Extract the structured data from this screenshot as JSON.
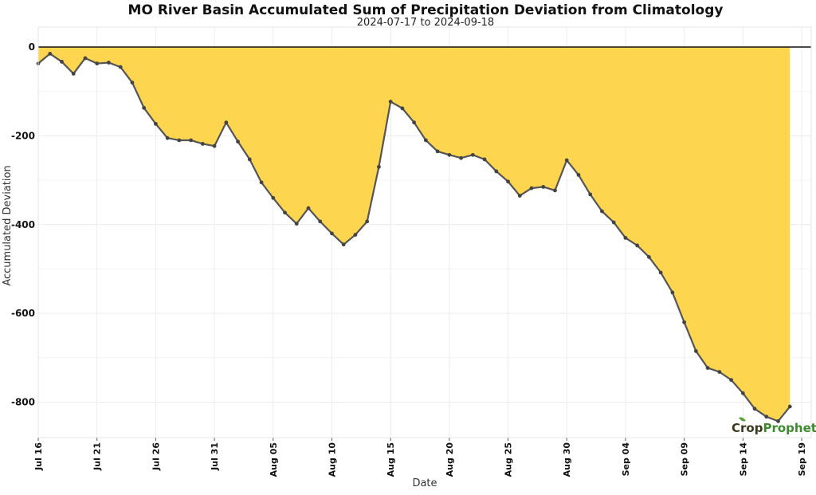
{
  "chart_data": {
    "type": "area",
    "title": "MO River Basin Accumulated Sum of Precipitation Deviation from Climatology",
    "subtitle": "2024-07-17 to 2024-09-18",
    "xlabel": "Date",
    "ylabel": "Accumulated Deviation",
    "ylim": [
      -880,
      45
    ],
    "y_ticks": [
      0,
      -200,
      -400,
      -600,
      -800
    ],
    "x_ticks": [
      "Jul 16",
      "Jul 21",
      "Jul 26",
      "Jul 31",
      "Aug 05",
      "Aug 10",
      "Aug 15",
      "Aug 20",
      "Aug 25",
      "Aug 30",
      "Sep 04",
      "Sep 09",
      "Sep 14",
      "Sep 19"
    ],
    "x_start_label": "Jul 16",
    "grid": true,
    "fill_color": "#fdd54f",
    "line_color": "#555555",
    "series": [
      {
        "x": [
          "2024-07-16",
          "2024-07-17",
          "2024-07-18",
          "2024-07-19",
          "2024-07-20",
          "2024-07-21",
          "2024-07-22",
          "2024-07-23",
          "2024-07-24",
          "2024-07-25",
          "2024-07-26",
          "2024-07-27",
          "2024-07-28",
          "2024-07-29",
          "2024-07-30",
          "2024-07-31",
          "2024-08-01",
          "2024-08-02",
          "2024-08-03",
          "2024-08-04",
          "2024-08-05",
          "2024-08-06",
          "2024-08-07",
          "2024-08-08",
          "2024-08-09",
          "2024-08-10",
          "2024-08-11",
          "2024-08-12",
          "2024-08-13",
          "2024-08-14",
          "2024-08-15",
          "2024-08-16",
          "2024-08-17",
          "2024-08-18",
          "2024-08-19",
          "2024-08-20",
          "2024-08-21",
          "2024-08-22",
          "2024-08-23",
          "2024-08-24",
          "2024-08-25",
          "2024-08-26",
          "2024-08-27",
          "2024-08-28",
          "2024-08-29",
          "2024-08-30",
          "2024-08-31",
          "2024-09-01",
          "2024-09-02",
          "2024-09-03",
          "2024-09-04",
          "2024-09-05",
          "2024-09-06",
          "2024-09-07",
          "2024-09-08",
          "2024-09-09",
          "2024-09-10",
          "2024-09-11",
          "2024-09-12",
          "2024-09-13",
          "2024-09-14",
          "2024-09-15",
          "2024-09-16",
          "2024-09-17",
          "2024-09-18"
        ],
        "y": [
          -37,
          -15,
          -33,
          -60,
          -25,
          -37,
          -35,
          -45,
          -80,
          -137,
          -173,
          -205,
          -210,
          -210,
          -218,
          -223,
          -170,
          -213,
          -253,
          -305,
          -340,
          -373,
          -398,
          -363,
          -393,
          -420,
          -445,
          -423,
          -393,
          -270,
          -123,
          -138,
          -170,
          -210,
          -235,
          -243,
          -250,
          -243,
          -253,
          -280,
          -303,
          -335,
          -318,
          -315,
          -323,
          -255,
          -288,
          -332,
          -370,
          -395,
          -430,
          -447,
          -473,
          -508,
          -553,
          -620,
          -685,
          -723,
          -732,
          -750,
          -780,
          -815,
          -833,
          -843,
          -810
        ]
      }
    ]
  },
  "branding": {
    "logo_part1": "Crop",
    "logo_part2": "Prophet"
  }
}
